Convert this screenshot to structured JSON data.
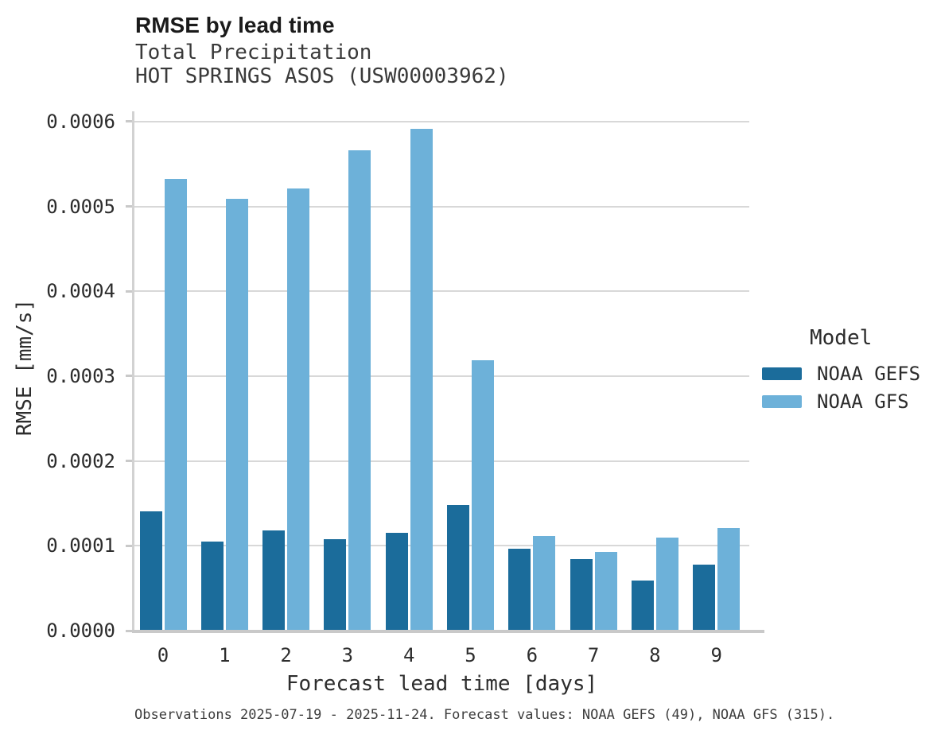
{
  "header": {
    "title": "RMSE by lead time",
    "subtitle": "Total Precipitation",
    "station": "HOT SPRINGS ASOS (USW00003962)"
  },
  "chart_data": {
    "type": "bar",
    "title": "RMSE by lead time",
    "subtitle": "Total Precipitation",
    "station": "HOT SPRINGS ASOS (USW00003962)",
    "categories": [
      "0",
      "1",
      "2",
      "3",
      "4",
      "5",
      "6",
      "7",
      "8",
      "9"
    ],
    "series": [
      {
        "name": "NOAA GEFS",
        "color": "#1b6c9b",
        "values": [
          0.000141,
          0.000105,
          0.000118,
          0.000108,
          0.000115,
          0.000148,
          9.7e-05,
          8.4e-05,
          5.9e-05,
          7.8e-05
        ]
      },
      {
        "name": "NOAA GFS",
        "color": "#6db1d9",
        "values": [
          0.000532,
          0.000509,
          0.000521,
          0.000566,
          0.000591,
          0.000319,
          0.000112,
          9.3e-05,
          0.00011,
          0.000121
        ]
      }
    ],
    "xlabel": "Forecast lead time [days]",
    "ylabel": "RMSE [mm/s]",
    "ylim": [
      0,
      0.000612
    ],
    "yticks": [
      {
        "value": 0.0,
        "label": "0.0000"
      },
      {
        "value": 0.0001,
        "label": "0.0001"
      },
      {
        "value": 0.0002,
        "label": "0.0002"
      },
      {
        "value": 0.0003,
        "label": "0.0003"
      },
      {
        "value": 0.0004,
        "label": "0.0004"
      },
      {
        "value": 0.0005,
        "label": "0.0005"
      },
      {
        "value": 0.0006,
        "label": "0.0006"
      }
    ],
    "legend_title": "Model",
    "legend_position": "right",
    "grid": "horizontal"
  },
  "caption": "Observations 2025-07-19 - 2025-11-24. Forecast values: NOAA GEFS (49), NOAA GFS (315)."
}
